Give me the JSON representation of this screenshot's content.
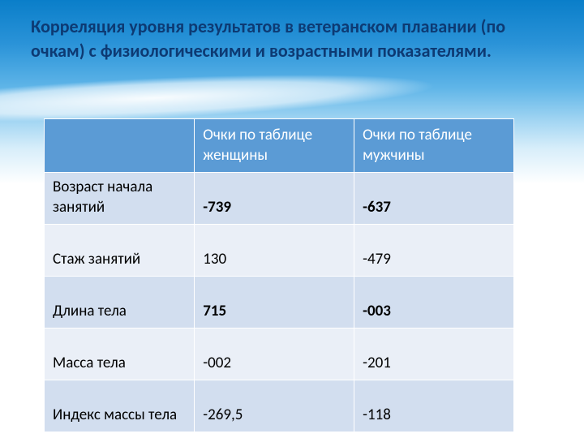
{
  "title_text": "Корреляция уровня результатов в ветеранском плавании (по очкам) с физиологическими и возрастными показателями.",
  "colors": {
    "title_color": "#0d3a73",
    "header_bg": "#5b9bd5",
    "header_fg": "#ffffff",
    "row_odd_bg": "#d2deef",
    "row_even_bg": "#eaeff7",
    "border_color": "#ffffff",
    "bg_gradient_top": "#0a7ec9",
    "bg_gradient_bottom": "#ffffff"
  },
  "typography": {
    "title_fontsize_pt": 17,
    "title_weight": "bold",
    "cell_fontsize_pt": 14
  },
  "table": {
    "type": "table",
    "columns": [
      {
        "label": "",
        "width_pct": 32
      },
      {
        "label": "Очки по таблице женщины",
        "width_pct": 34
      },
      {
        "label": "Очки по таблице мужчины",
        "width_pct": 34
      }
    ],
    "rows": [
      {
        "label": "Возраст начала занятий",
        "women": "-739",
        "men": "-637",
        "bold": true
      },
      {
        "label": "Стаж занятий",
        "women": "130",
        "men": "-479",
        "bold": false
      },
      {
        "label": "Длина тела",
        "women": "715",
        "men": "-003",
        "bold": true
      },
      {
        "label": "Масса тела",
        "women": "-002",
        "men": "-201",
        "bold": false
      },
      {
        "label": "Индекс массы тела",
        "women": "-269,5",
        "men": "-118",
        "bold": false
      }
    ]
  }
}
